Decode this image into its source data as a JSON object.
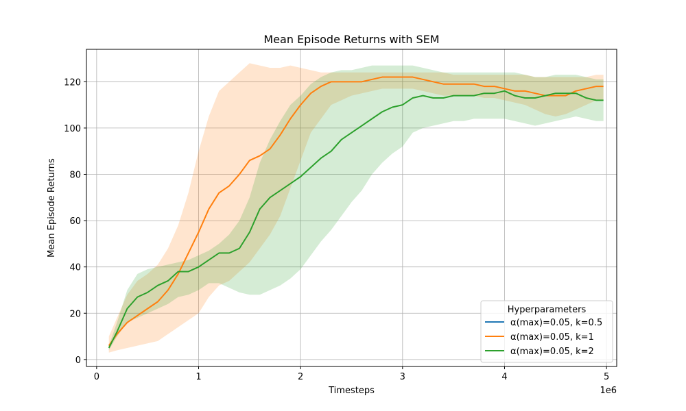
{
  "chart_data": {
    "type": "line",
    "title": "Mean Episode Returns with SEM",
    "xlabel": "Timesteps",
    "ylabel": "Mean Episode Returns",
    "x_offset_label": "1e6",
    "x_scale": 1000000,
    "xlim": [
      -0.1,
      5.1
    ],
    "ylim": [
      -3,
      134
    ],
    "x_ticks": [
      0,
      1,
      2,
      3,
      4,
      5
    ],
    "y_ticks": [
      0,
      20,
      40,
      60,
      80,
      100,
      120
    ],
    "grid": true,
    "legend": {
      "title": "Hyperparameters",
      "position": "lower-right"
    },
    "series": [
      {
        "name": "α(max)=0.05, k=0.5",
        "color": "#1f77b4",
        "x": [],
        "y": [],
        "y_lower": [],
        "y_upper": []
      },
      {
        "name": "α(max)=0.05, k=1",
        "color": "#ff7f0e",
        "x": [
          0.12,
          0.2,
          0.3,
          0.4,
          0.5,
          0.6,
          0.7,
          0.8,
          0.9,
          1.0,
          1.1,
          1.2,
          1.3,
          1.4,
          1.5,
          1.6,
          1.7,
          1.8,
          1.9,
          2.0,
          2.1,
          2.2,
          2.3,
          2.4,
          2.5,
          2.6,
          2.7,
          2.8,
          2.9,
          3.0,
          3.1,
          3.2,
          3.3,
          3.4,
          3.5,
          3.6,
          3.7,
          3.8,
          3.9,
          4.0,
          4.1,
          4.2,
          4.3,
          4.4,
          4.5,
          4.6,
          4.7,
          4.8,
          4.9,
          4.97
        ],
        "y": [
          6,
          11,
          16,
          19,
          22,
          25,
          30,
          37,
          46,
          55,
          65,
          72,
          75,
          80,
          86,
          88,
          91,
          97,
          104,
          110,
          115,
          118,
          120,
          120,
          120,
          120,
          121,
          122,
          122,
          122,
          122,
          121,
          120,
          119,
          119,
          119,
          119,
          118,
          118,
          117,
          116,
          116,
          115,
          114,
          114,
          114,
          116,
          117,
          118,
          118
        ],
        "y_lower": [
          3,
          4,
          5,
          6,
          7,
          8,
          11,
          14,
          17,
          20,
          27,
          32,
          34,
          38,
          42,
          48,
          54,
          62,
          74,
          86,
          98,
          104,
          110,
          112,
          114,
          115,
          116,
          117,
          117,
          117,
          117,
          116,
          115,
          114,
          114,
          114,
          114,
          113,
          113,
          112,
          111,
          110,
          108,
          106,
          105,
          106,
          108,
          110,
          112,
          112
        ],
        "y_upper": [
          10,
          18,
          28,
          34,
          37,
          41,
          48,
          58,
          72,
          90,
          105,
          116,
          120,
          124,
          128,
          127,
          126,
          126,
          127,
          126,
          125,
          124,
          124,
          124,
          124,
          124,
          124,
          124,
          124,
          124,
          124,
          124,
          124,
          124,
          123,
          123,
          123,
          123,
          123,
          123,
          123,
          123,
          122,
          122,
          122,
          122,
          122,
          122,
          123,
          123
        ]
      },
      {
        "name": "α(max)=0.05, k=2",
        "color": "#2ca02c",
        "x": [
          0.12,
          0.2,
          0.3,
          0.4,
          0.5,
          0.6,
          0.7,
          0.8,
          0.9,
          1.0,
          1.1,
          1.2,
          1.3,
          1.4,
          1.5,
          1.6,
          1.7,
          1.8,
          1.9,
          2.0,
          2.1,
          2.2,
          2.3,
          2.4,
          2.5,
          2.6,
          2.7,
          2.8,
          2.9,
          3.0,
          3.1,
          3.2,
          3.3,
          3.4,
          3.5,
          3.6,
          3.7,
          3.8,
          3.9,
          4.0,
          4.1,
          4.2,
          4.3,
          4.4,
          4.5,
          4.6,
          4.7,
          4.8,
          4.9,
          4.97
        ],
        "y": [
          5,
          12,
          22,
          27,
          29,
          32,
          34,
          38,
          38,
          40,
          43,
          46,
          46,
          48,
          55,
          65,
          70,
          73,
          76,
          79,
          83,
          87,
          90,
          95,
          98,
          101,
          104,
          107,
          109,
          110,
          113,
          114,
          113,
          113,
          114,
          114,
          114,
          115,
          115,
          116,
          114,
          113,
          113,
          114,
          115,
          115,
          115,
          113,
          112,
          112
        ],
        "y_lower": [
          4,
          10,
          16,
          18,
          20,
          22,
          24,
          27,
          28,
          30,
          33,
          33,
          31,
          29,
          28,
          28,
          30,
          32,
          35,
          39,
          45,
          51,
          56,
          62,
          68,
          73,
          80,
          85,
          89,
          92,
          98,
          100,
          101,
          102,
          103,
          103,
          104,
          104,
          104,
          104,
          103,
          102,
          101,
          102,
          103,
          104,
          105,
          104,
          103,
          103
        ],
        "y_upper": [
          6,
          16,
          30,
          37,
          39,
          40,
          41,
          42,
          43,
          45,
          47,
          50,
          54,
          60,
          70,
          85,
          95,
          103,
          110,
          114,
          119,
          122,
          124,
          125,
          125,
          126,
          127,
          127,
          127,
          127,
          127,
          126,
          125,
          124,
          124,
          124,
          124,
          124,
          124,
          124,
          124,
          123,
          122,
          122,
          123,
          123,
          123,
          122,
          121,
          121
        ]
      }
    ]
  }
}
